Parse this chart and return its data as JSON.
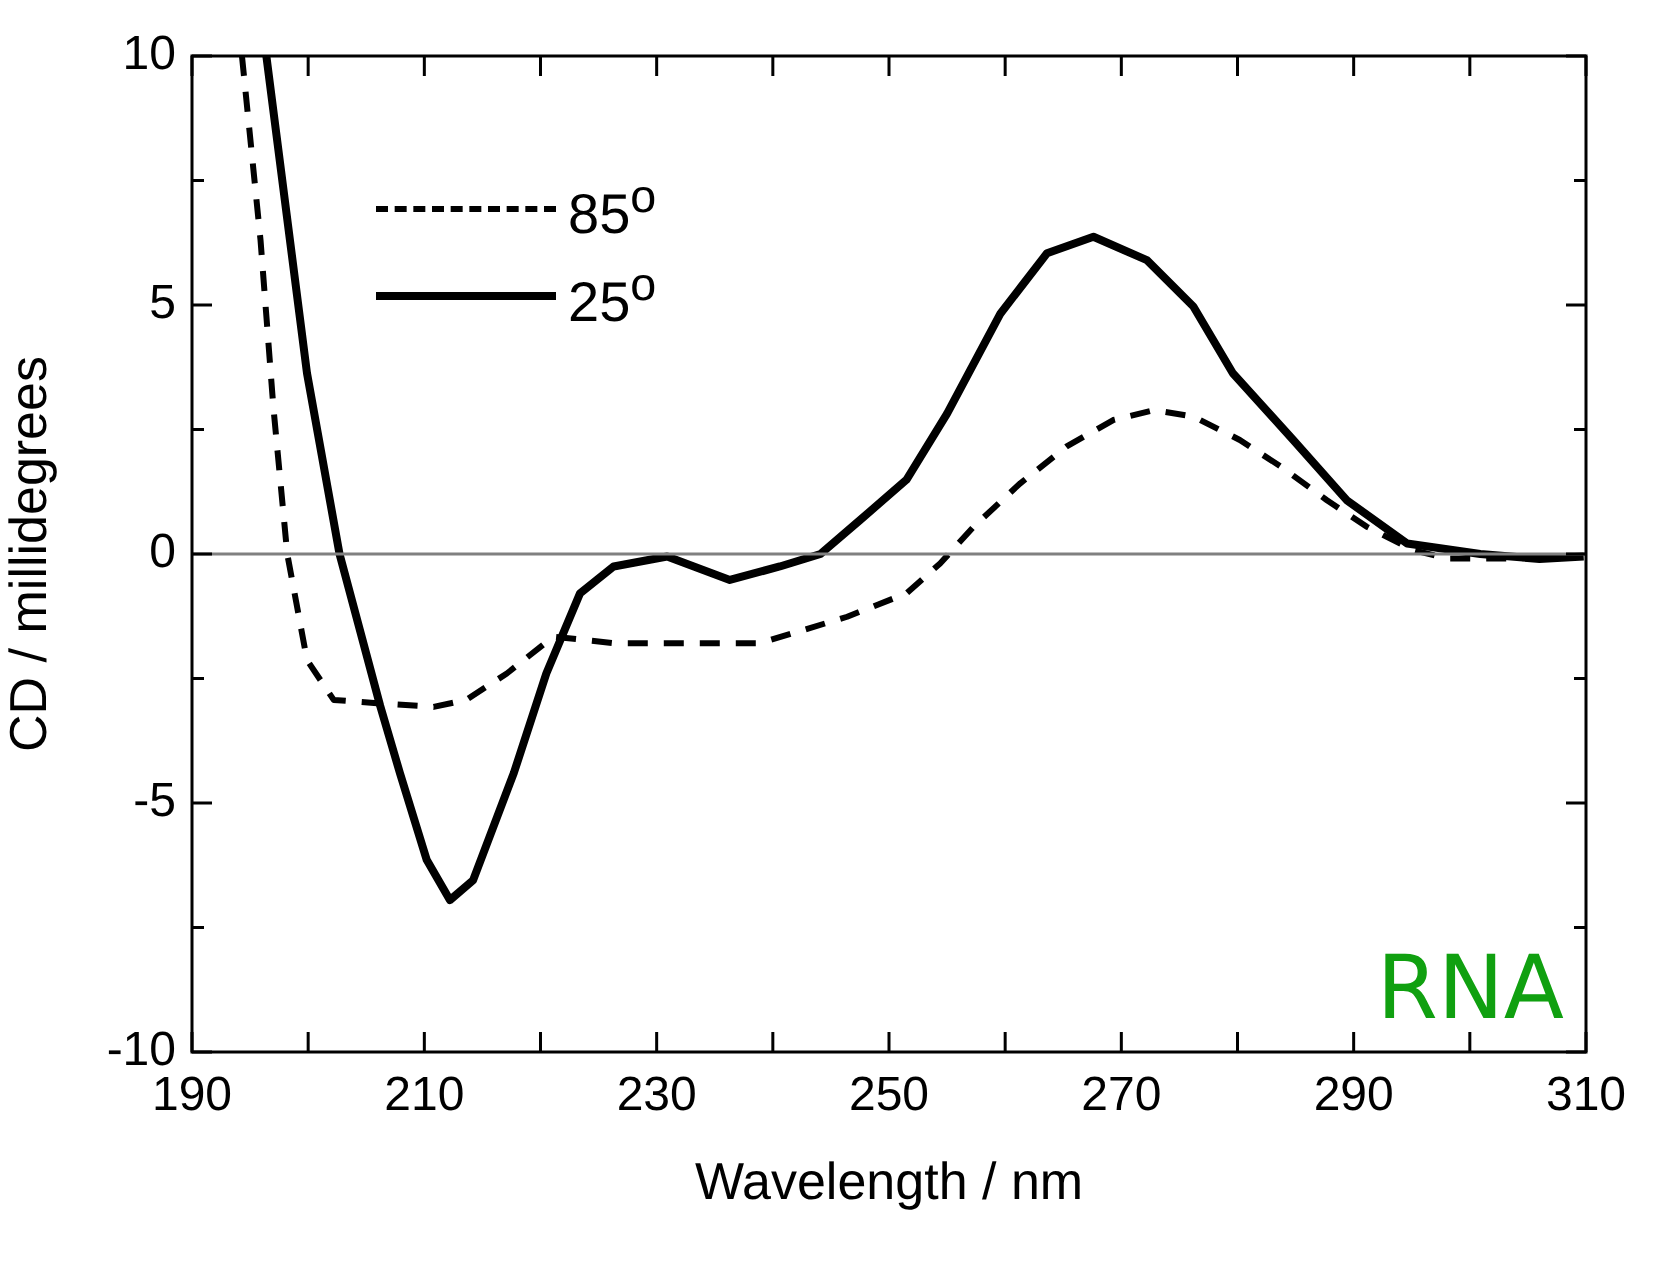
{
  "chart_data": {
    "type": "line",
    "xlabel": "Wavelength / nm",
    "ylabel": "CD / millidegrees",
    "xlim": [
      190,
      310
    ],
    "ylim": [
      -10,
      10
    ],
    "xticks": [
      190,
      {
        "value": 200,
        "label": null
      },
      210,
      {
        "value": 220,
        "label": null
      },
      230,
      {
        "value": 240,
        "label": null
      },
      250,
      {
        "value": 260,
        "label": null
      },
      270,
      {
        "value": 280,
        "label": null
      },
      290,
      {
        "value": 300,
        "label": null
      },
      310
    ],
    "yticks": [
      -10,
      {
        "value": -7.5,
        "label": null
      },
      -5,
      {
        "value": -2.5,
        "label": null
      },
      0,
      {
        "value": 2.5,
        "label": null
      },
      5,
      {
        "value": 7.5,
        "label": null
      },
      10
    ],
    "grid": false,
    "legend": "top left",
    "marker": "none",
    "ref_lines": [
      {
        "axis": "y",
        "value": 0,
        "color": "#808080"
      }
    ],
    "annotations": [
      "RNA"
    ],
    "series": [
      {
        "name": "85$^{o}$",
        "color": "#000000",
        "line_style": "dashed",
        "x": [
          194.3,
          195.9,
          197.0,
          198.2,
          199.9,
          202.2,
          206.2,
          210.8,
          213.6,
          217.1,
          221.1,
          226.3,
          232.6,
          238.9,
          246.4,
          251.5,
          254.4,
          257.3,
          261.3,
          265.3,
          269.3,
          272.8,
          276.2,
          280.2,
          283.7,
          287.7,
          291.1,
          295.1,
          298.0,
          303.7,
          309.8
        ],
        "values": [
          10,
          6.3,
          2.96,
          0,
          -2.13,
          -2.93,
          -3.0,
          -3.07,
          -2.93,
          -2.4,
          -1.66,
          -1.79,
          -1.79,
          -1.79,
          -1.26,
          -0.79,
          -0.19,
          0.55,
          1.42,
          2.16,
          2.69,
          2.89,
          2.76,
          2.29,
          1.76,
          1.08,
          0.55,
          0.08,
          -0.09,
          -0.09,
          -0.05
        ]
      },
      {
        "name": "25$^{o}$",
        "color": "#000000",
        "line_style": "solid",
        "x": [
          196.4,
          199.9,
          202.7,
          206.2,
          207.9,
          210.2,
          212.2,
          214.2,
          217.7,
          220.5,
          223.4,
          226.3,
          230.9,
          236.3,
          240.6,
          244.1,
          247.5,
          251.5,
          255.0,
          259.6,
          263.6,
          267.6,
          272.2,
          276.2,
          279.6,
          284.8,
          289.4,
          294.6,
          300.9,
          306.0,
          309.8
        ],
        "values": [
          10,
          3.63,
          0,
          -3.05,
          -4.4,
          -6.14,
          -6.95,
          -6.55,
          -4.4,
          -2.4,
          -0.79,
          -0.25,
          -0.05,
          -0.52,
          -0.25,
          0,
          0.68,
          1.49,
          2.82,
          4.83,
          6.04,
          6.37,
          5.9,
          4.97,
          3.63,
          2.29,
          1.08,
          0.21,
          0,
          -0.1,
          -0.05
        ]
      }
    ]
  }
}
